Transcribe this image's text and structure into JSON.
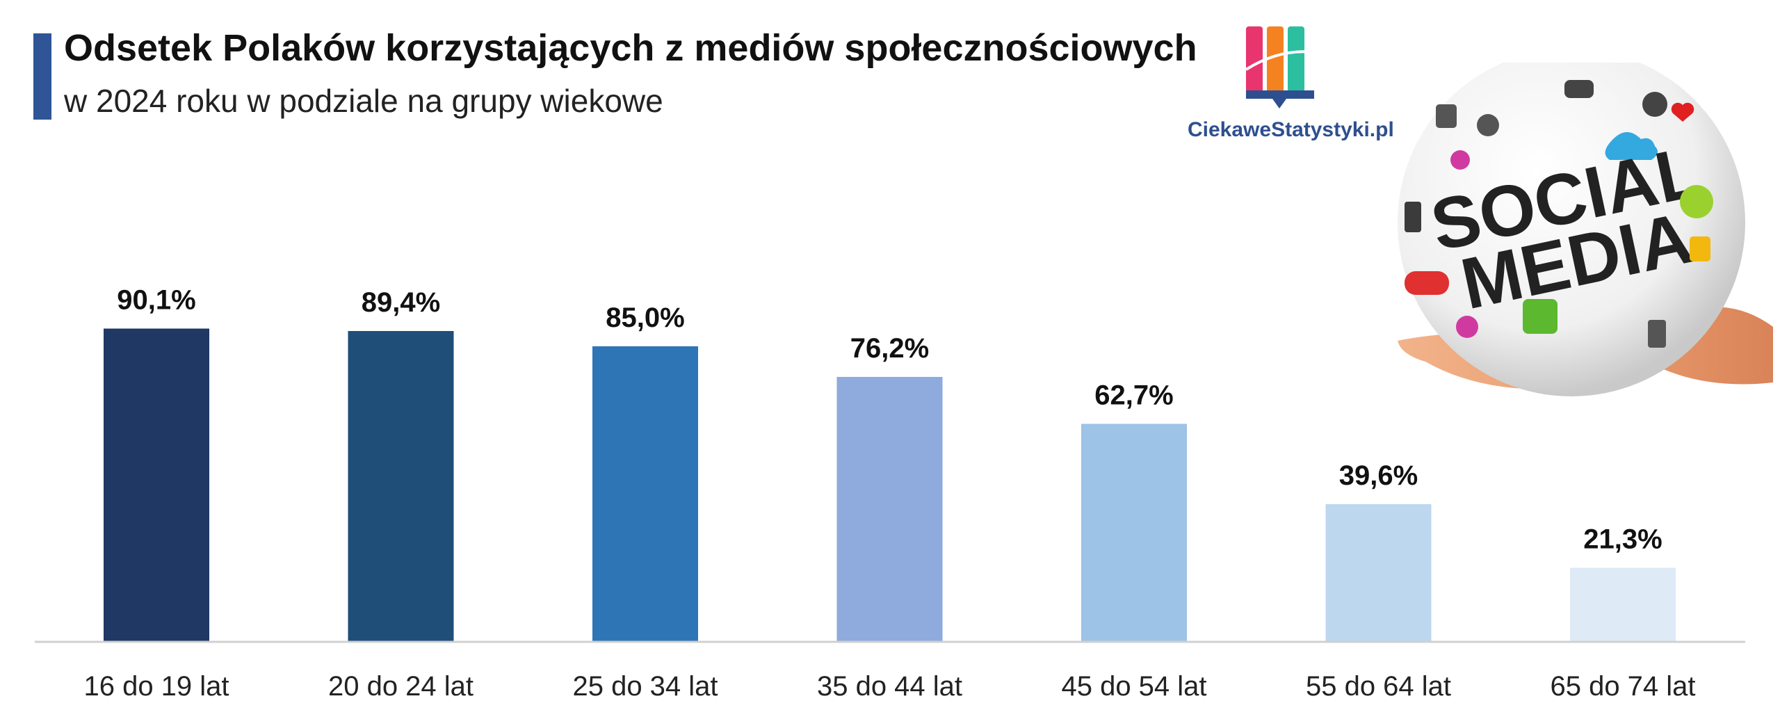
{
  "header": {
    "title": "Odsetek Polaków korzystających z mediów społecznościowych",
    "subtitle": "w 2024 roku w podziale na grupy wiekowe"
  },
  "logo": {
    "text": "CiekaweStatystyki.pl",
    "colors": [
      "#e8356d",
      "#f58220",
      "#2bbfa0",
      "#2e4f8f"
    ]
  },
  "illustration": {
    "icon": "social-media-globe-in-hand-icon",
    "text": "SOCIAL MEDIA"
  },
  "colors": {
    "title_accent": "#2f5597",
    "bars": [
      "#1f3864",
      "#1f4e79",
      "#2e75b6",
      "#8faadc",
      "#9dc3e6",
      "#bdd7ee",
      "#deebf7"
    ]
  },
  "chart_data": {
    "type": "bar",
    "categories": [
      "16 do 19 lat",
      "20 do 24 lat",
      "25 do 34 lat",
      "35 do 44 lat",
      "45 do 54 lat",
      "55 do 64 lat",
      "65 do 74 lat"
    ],
    "values": [
      90.1,
      89.4,
      85.0,
      76.2,
      62.7,
      39.6,
      21.3
    ],
    "value_labels": [
      "90,1%",
      "89,4%",
      "85,0%",
      "76,2%",
      "62,7%",
      "39,6%",
      "21,3%"
    ],
    "title": "Odsetek Polaków korzystających z mediów społecznościowych",
    "subtitle": "w 2024 roku w podziale na grupy wiekowe",
    "xlabel": "",
    "ylabel": "",
    "ylim": [
      0,
      100
    ],
    "grid": false,
    "legend": "none"
  }
}
